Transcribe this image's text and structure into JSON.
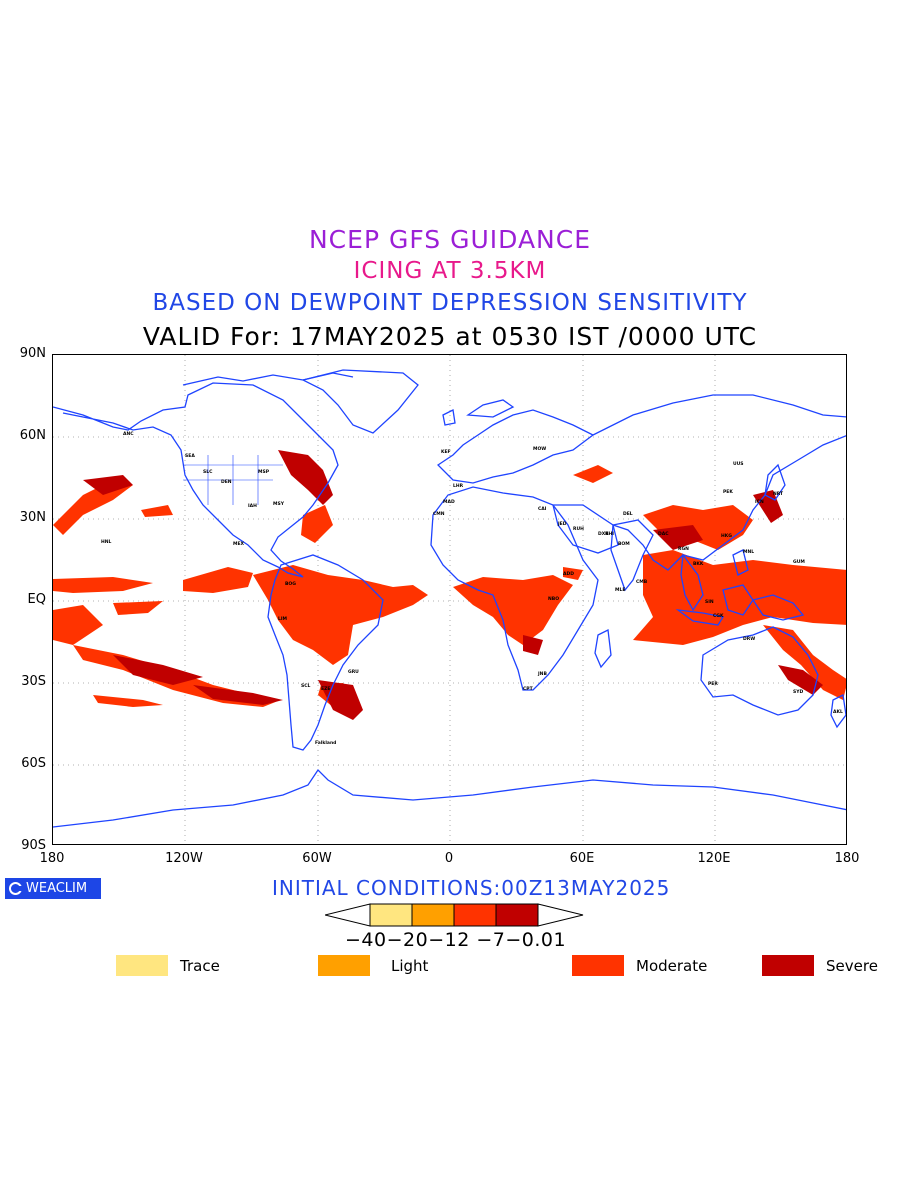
{
  "header": {
    "line1": "NCEP GFS GUIDANCE",
    "line2": "ICING AT 3.5KM",
    "line3": "BASED ON DEWPOINT DEPRESSION SENSITIVITY",
    "line4": "VALID For: 17MAY2025 at 0530 IST /0000 UTC"
  },
  "colors": {
    "line1": "#9b1fd6",
    "line2": "#e8198b",
    "line3": "#2147e6",
    "coast": "#1f44ff",
    "trace": "#ffe680",
    "light": "#ffa000",
    "moderate": "#ff3300",
    "severe": "#c00000",
    "grid": "#888888"
  },
  "axes": {
    "lat_labels": [
      "90N",
      "60N",
      "30N",
      "EQ",
      "30S",
      "60S",
      "90S"
    ],
    "lon_labels": [
      "180",
      "120W",
      "60W",
      "0",
      "60E",
      "120E",
      "180"
    ]
  },
  "brand": {
    "label": "WEACLIM"
  },
  "initial_conditions": "INITIAL CONDITIONS:00Z13MAY2025",
  "colorbar": {
    "levels": "−40−20−12 −7−0.01"
  },
  "legend": [
    {
      "label": "Trace",
      "color": "#ffe680"
    },
    {
      "label": "Light",
      "color": "#ffa000"
    },
    {
      "label": "Moderate",
      "color": "#ff3300"
    },
    {
      "label": "Severe",
      "color": "#c00000"
    }
  ],
  "station_labels": [
    "ANC",
    "MSP",
    "MSY",
    "IAH",
    "DEN",
    "SLC",
    "SEA",
    "MEX",
    "HNL",
    "BOG",
    "LIM",
    "GRU",
    "EZE",
    "SCL",
    "Falkland",
    "KEF",
    "LHR",
    "MAD",
    "CMN",
    "CAI",
    "JED",
    "RUH",
    "DXB",
    "KHI",
    "DEL",
    "BOM",
    "CMB",
    "DAC",
    "RGN",
    "BKK",
    "SIN",
    "CGK",
    "MNL",
    "HKG",
    "PEK",
    "ICN",
    "NRT",
    "GUM",
    "DRW",
    "PER",
    "SYD",
    "AKL",
    "JNB",
    "CPT",
    "NBO",
    "ADD",
    "MOW",
    "UUS",
    "MLE"
  ]
}
